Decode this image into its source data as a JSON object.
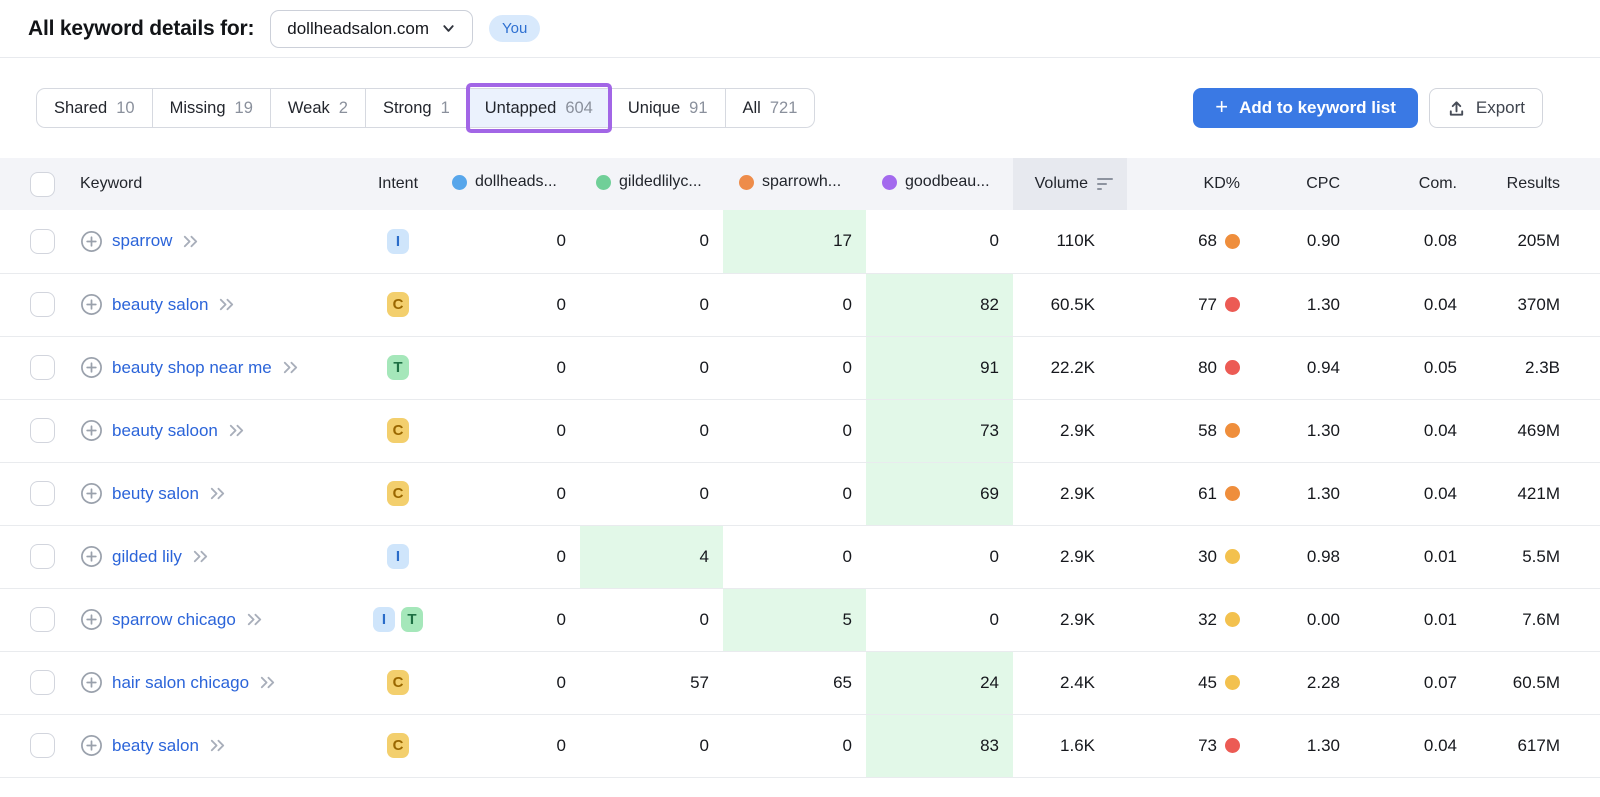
{
  "header": {
    "title": "All keyword details for:",
    "domain": "dollheadsalon.com",
    "you_badge": "You"
  },
  "tabs": [
    {
      "label": "Shared",
      "count": "10"
    },
    {
      "label": "Missing",
      "count": "19"
    },
    {
      "label": "Weak",
      "count": "2"
    },
    {
      "label": "Strong",
      "count": "1"
    },
    {
      "label": "Untapped",
      "count": "604",
      "active": true,
      "highlighted": true
    },
    {
      "label": "Unique",
      "count": "91"
    },
    {
      "label": "All",
      "count": "721"
    }
  ],
  "actions": {
    "add_to_list": "Add to keyword list",
    "export": "Export"
  },
  "table": {
    "columns": {
      "keyword": "Keyword",
      "intent": "Intent",
      "competitors": [
        {
          "label": "dollheads...",
          "color": "#57a6eb"
        },
        {
          "label": "gildedlilyc...",
          "color": "#70cf98"
        },
        {
          "label": "sparrowh...",
          "color": "#ee8c4a"
        },
        {
          "label": "goodbeau...",
          "color": "#a369ee"
        }
      ],
      "volume": "Volume",
      "kd": "KD%",
      "cpc": "CPC",
      "com": "Com.",
      "results": "Results",
      "volume_sorted": "descending"
    },
    "rows": [
      {
        "keyword": "sparrow",
        "intents": [
          {
            "label": "I",
            "type": "i"
          }
        ],
        "values": [
          "0",
          "0",
          "17",
          "0"
        ],
        "highlight": 2,
        "volume": "110K",
        "kd": "68",
        "kd_level": "orange",
        "cpc": "0.90",
        "com": "0.08",
        "results": "205M"
      },
      {
        "keyword": "beauty salon",
        "intents": [
          {
            "label": "C",
            "type": "c"
          }
        ],
        "values": [
          "0",
          "0",
          "0",
          "82"
        ],
        "highlight": 3,
        "volume": "60.5K",
        "kd": "77",
        "kd_level": "red",
        "cpc": "1.30",
        "com": "0.04",
        "results": "370M"
      },
      {
        "keyword": "beauty shop near me",
        "intents": [
          {
            "label": "T",
            "type": "t"
          }
        ],
        "values": [
          "0",
          "0",
          "0",
          "91"
        ],
        "highlight": 3,
        "volume": "22.2K",
        "kd": "80",
        "kd_level": "red",
        "cpc": "0.94",
        "com": "0.05",
        "results": "2.3B"
      },
      {
        "keyword": "beauty saloon",
        "intents": [
          {
            "label": "C",
            "type": "c"
          }
        ],
        "values": [
          "0",
          "0",
          "0",
          "73"
        ],
        "highlight": 3,
        "volume": "2.9K",
        "kd": "58",
        "kd_level": "orange",
        "cpc": "1.30",
        "com": "0.04",
        "results": "469M"
      },
      {
        "keyword": "beuty salon",
        "intents": [
          {
            "label": "C",
            "type": "c"
          }
        ],
        "values": [
          "0",
          "0",
          "0",
          "69"
        ],
        "highlight": 3,
        "volume": "2.9K",
        "kd": "61",
        "kd_level": "orange",
        "cpc": "1.30",
        "com": "0.04",
        "results": "421M"
      },
      {
        "keyword": "gilded lily",
        "intents": [
          {
            "label": "I",
            "type": "i"
          }
        ],
        "values": [
          "0",
          "4",
          "0",
          "0"
        ],
        "highlight": 1,
        "volume": "2.9K",
        "kd": "30",
        "kd_level": "yellow",
        "cpc": "0.98",
        "com": "0.01",
        "results": "5.5M"
      },
      {
        "keyword": "sparrow chicago",
        "intents": [
          {
            "label": "I",
            "type": "i"
          },
          {
            "label": "T",
            "type": "t"
          }
        ],
        "values": [
          "0",
          "0",
          "5",
          "0"
        ],
        "highlight": 2,
        "volume": "2.9K",
        "kd": "32",
        "kd_level": "yellow",
        "cpc": "0.00",
        "com": "0.01",
        "results": "7.6M"
      },
      {
        "keyword": "hair salon chicago",
        "intents": [
          {
            "label": "C",
            "type": "c"
          }
        ],
        "values": [
          "0",
          "57",
          "65",
          "24"
        ],
        "highlight": 3,
        "volume": "2.4K",
        "kd": "45",
        "kd_level": "yellow",
        "cpc": "2.28",
        "com": "0.07",
        "results": "60.5M"
      },
      {
        "keyword": "beaty salon",
        "intents": [
          {
            "label": "C",
            "type": "c"
          }
        ],
        "values": [
          "0",
          "0",
          "0",
          "83"
        ],
        "highlight": 3,
        "volume": "1.6K",
        "kd": "73",
        "kd_level": "red",
        "cpc": "1.30",
        "com": "0.04",
        "results": "617M"
      }
    ]
  },
  "colors": {
    "accent_blue": "#3a79e4",
    "highlight_purple": "#a266e6",
    "untapped_tab_bg": "#ebf2fd",
    "green_highlight": "#e2f8e8",
    "link_blue": "#2b64d9",
    "kd_orange": "#ef8e3c",
    "kd_red": "#ec5b54",
    "kd_yellow": "#f3c14e",
    "intent_informational_bg": "#cfe5fb",
    "intent_commercial_bg": "#f3cf6d",
    "intent_transactional_bg": "#a5e7ba"
  }
}
